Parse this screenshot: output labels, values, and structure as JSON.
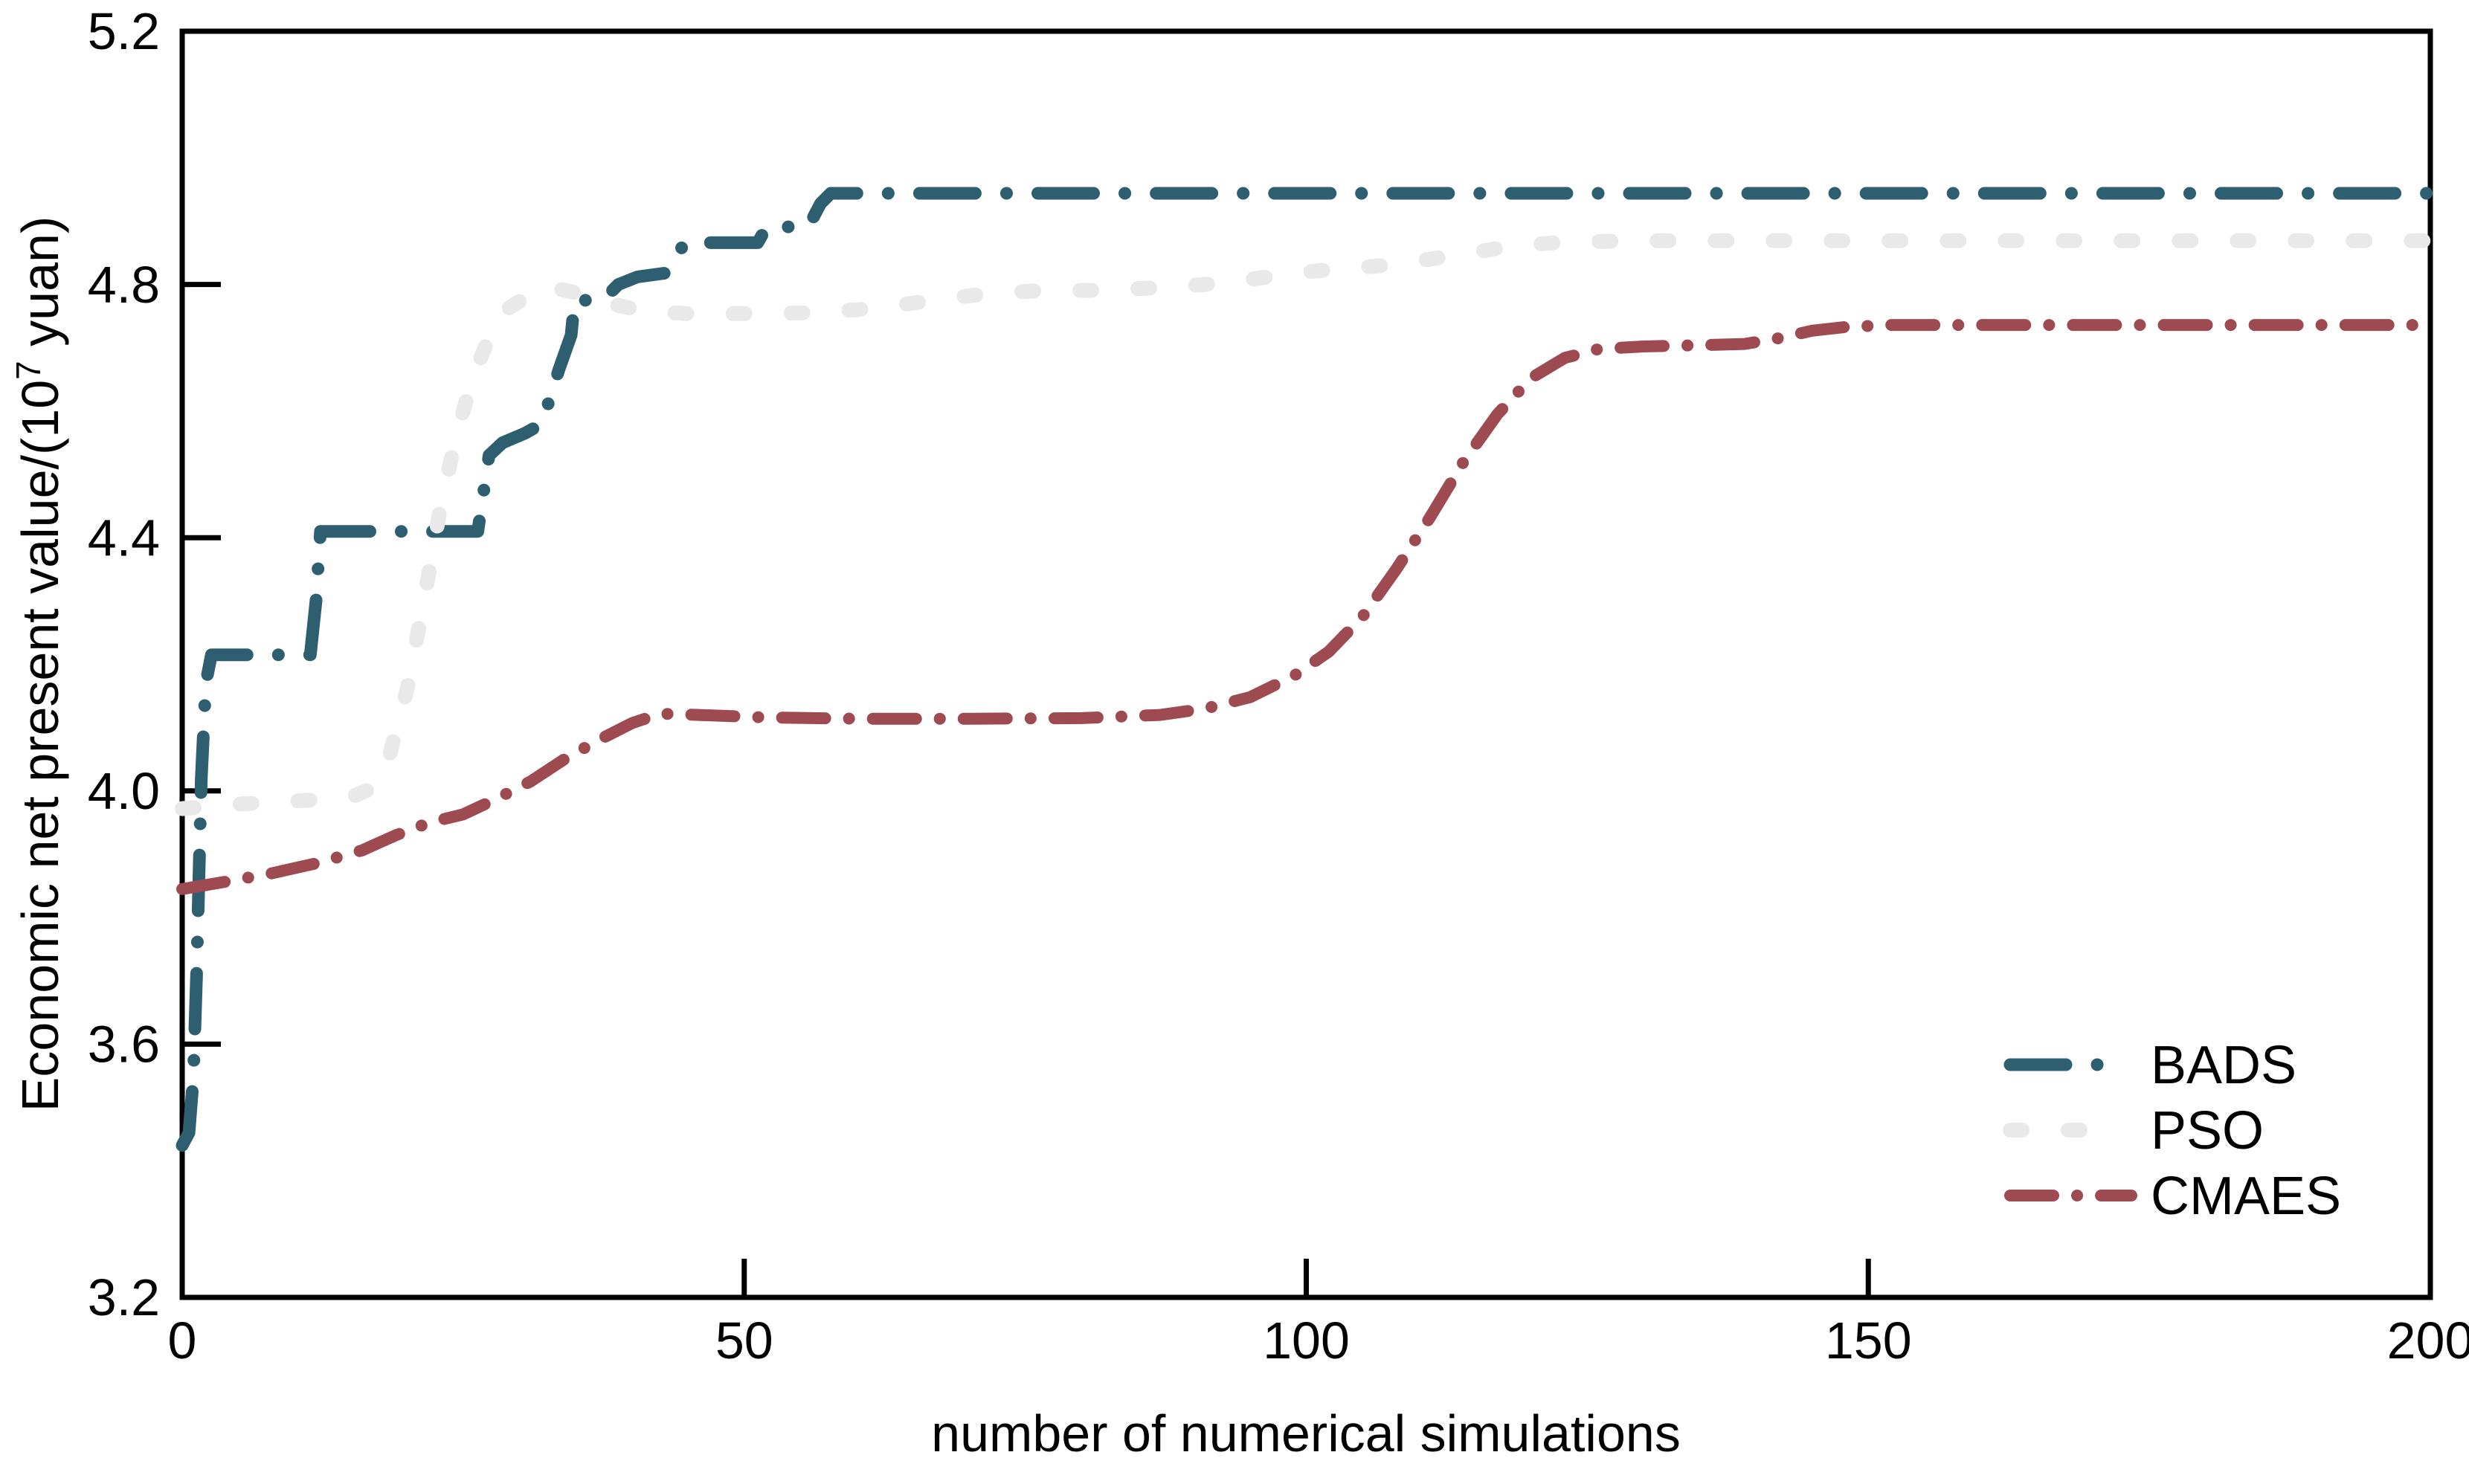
{
  "chart_data": {
    "type": "line",
    "title": "",
    "xlabel": "number of numerical simulations",
    "ylabel": "Economic net present value/(10⁷ yuan)",
    "ylabel_parts": {
      "prefix": "Economic net present value/(10",
      "sup": "7",
      "suffix": " yuan)"
    },
    "xlim": [
      0,
      200
    ],
    "ylim": [
      3.2,
      5.2
    ],
    "xticks": [
      0,
      50,
      100,
      150,
      200
    ],
    "yticks": [
      3.2,
      3.6,
      4.0,
      4.4,
      4.8,
      5.2
    ],
    "grid": false,
    "legend_position": "lower right",
    "series": [
      {
        "name": "BADS",
        "color": "#2e5f71",
        "dash": [
          75,
          42,
          0.1,
          42
        ],
        "width": 17,
        "points": [
          [
            0,
            3.44
          ],
          [
            0.6,
            3.46
          ],
          [
            1.0,
            3.55
          ],
          [
            1.3,
            3.72
          ],
          [
            1.7,
            4.02
          ],
          [
            2.1,
            4.17
          ],
          [
            2.6,
            4.215
          ],
          [
            11.4,
            4.215
          ],
          [
            11.9,
            4.3
          ],
          [
            12.3,
            4.41
          ],
          [
            26.3,
            4.41
          ],
          [
            27.3,
            4.53
          ],
          [
            28.5,
            4.55
          ],
          [
            30.5,
            4.565
          ],
          [
            32.0,
            4.58
          ],
          [
            33.5,
            4.665
          ],
          [
            34.6,
            4.72
          ],
          [
            34.9,
            4.775
          ],
          [
            37.4,
            4.775
          ],
          [
            38.8,
            4.8
          ],
          [
            40.5,
            4.812
          ],
          [
            43.0,
            4.818
          ],
          [
            44.3,
            4.855
          ],
          [
            44.8,
            4.866
          ],
          [
            51.2,
            4.866
          ],
          [
            52.0,
            4.891
          ],
          [
            55.7,
            4.891
          ],
          [
            56.8,
            4.928
          ],
          [
            57.7,
            4.944
          ],
          [
            200,
            4.944
          ]
        ]
      },
      {
        "name": "PSO",
        "color": "#e9e9e9",
        "dash": [
          16,
          62
        ],
        "width": 20,
        "points": [
          [
            0,
            3.972
          ],
          [
            4,
            3.978
          ],
          [
            8,
            3.982
          ],
          [
            12,
            3.986
          ],
          [
            15,
            3.99
          ],
          [
            17,
            4.005
          ],
          [
            18.5,
            4.06
          ],
          [
            20,
            4.16
          ],
          [
            21.5,
            4.3
          ],
          [
            23,
            4.45
          ],
          [
            24.5,
            4.57
          ],
          [
            26,
            4.66
          ],
          [
            27.5,
            4.725
          ],
          [
            29,
            4.762
          ],
          [
            31,
            4.785
          ],
          [
            33,
            4.795
          ],
          [
            35.5,
            4.785
          ],
          [
            38,
            4.77
          ],
          [
            41,
            4.758
          ],
          [
            45,
            4.754
          ],
          [
            50,
            4.754
          ],
          [
            55,
            4.755
          ],
          [
            60,
            4.76
          ],
          [
            64,
            4.768
          ],
          [
            68,
            4.778
          ],
          [
            72,
            4.786
          ],
          [
            76,
            4.79
          ],
          [
            82,
            4.791
          ],
          [
            87,
            4.795
          ],
          [
            91,
            4.8
          ],
          [
            95,
            4.808
          ],
          [
            99,
            4.818
          ],
          [
            103,
            4.825
          ],
          [
            107,
            4.83
          ],
          [
            111,
            4.84
          ],
          [
            114,
            4.848
          ],
          [
            117,
            4.857
          ],
          [
            120,
            4.863
          ],
          [
            123,
            4.867
          ],
          [
            130,
            4.869
          ],
          [
            200,
            4.869
          ]
        ]
      },
      {
        "name": "CMAES",
        "color": "#9e4a51",
        "dash": [
          58,
          32,
          0.1,
          32
        ],
        "width": 16,
        "points": [
          [
            0,
            3.845
          ],
          [
            4,
            3.857
          ],
          [
            8,
            3.87
          ],
          [
            12,
            3.886
          ],
          [
            16,
            3.906
          ],
          [
            19,
            3.93
          ],
          [
            22,
            3.95
          ],
          [
            25,
            3.963
          ],
          [
            28,
            3.988
          ],
          [
            31,
            4.015
          ],
          [
            34,
            4.05
          ],
          [
            37,
            4.08
          ],
          [
            40,
            4.107
          ],
          [
            42.5,
            4.122
          ],
          [
            46,
            4.12
          ],
          [
            52,
            4.116
          ],
          [
            60,
            4.114
          ],
          [
            70,
            4.114
          ],
          [
            80,
            4.115
          ],
          [
            87,
            4.12
          ],
          [
            91,
            4.13
          ],
          [
            95,
            4.148
          ],
          [
            99,
            4.183
          ],
          [
            102,
            4.22
          ],
          [
            105,
            4.275
          ],
          [
            108,
            4.35
          ],
          [
            111,
            4.432
          ],
          [
            114,
            4.52
          ],
          [
            117,
            4.595
          ],
          [
            120,
            4.652
          ],
          [
            123,
            4.684
          ],
          [
            126,
            4.698
          ],
          [
            130,
            4.702
          ],
          [
            135,
            4.704
          ],
          [
            139,
            4.706
          ],
          [
            142,
            4.715
          ],
          [
            145,
            4.727
          ],
          [
            148,
            4.733
          ],
          [
            152,
            4.736
          ],
          [
            200,
            4.736
          ]
        ]
      }
    ]
  },
  "legend": {
    "position": "lower-right",
    "items": [
      "BADS",
      "PSO",
      "CMAES"
    ]
  }
}
